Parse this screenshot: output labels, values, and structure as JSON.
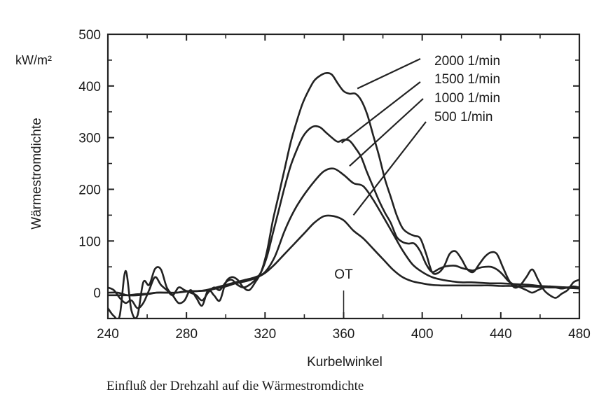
{
  "chart_data": {
    "type": "line",
    "title": "",
    "xlabel": "Kurbelwinkel",
    "ylabel": "Wärmestromdichte",
    "yunit": "kW/m²",
    "xlim": [
      240,
      480
    ],
    "ylim": [
      -50,
      500
    ],
    "xticks": [
      240,
      280,
      320,
      360,
      400,
      440,
      480
    ],
    "yticks": [
      0,
      100,
      200,
      300,
      400,
      500
    ],
    "annotation": "OT",
    "annotation_x": 360,
    "grid": false,
    "legend": "top-right (labels with leader lines)",
    "series": [
      {
        "name": "2000 1/min",
        "x": [
          240,
          243,
          246,
          249,
          252,
          255,
          258,
          261,
          264,
          267,
          270,
          273,
          276,
          279,
          282,
          285,
          288,
          291,
          294,
          297,
          300,
          303,
          306,
          309,
          312,
          315,
          318,
          321,
          324,
          327,
          330,
          333,
          336,
          339,
          342,
          345,
          348,
          351,
          354,
          357,
          360,
          363,
          366,
          369,
          372,
          375,
          378,
          381,
          384,
          387,
          390,
          393,
          396,
          399,
          402,
          405,
          408,
          411,
          414,
          417,
          420,
          423,
          426,
          429,
          432,
          435,
          438,
          441,
          444,
          447,
          450,
          453,
          456,
          459,
          462,
          465,
          468,
          471,
          474,
          477,
          480
        ],
        "y": [
          -30,
          -45,
          -45,
          42,
          -35,
          -45,
          20,
          15,
          46,
          45,
          10,
          -5,
          -20,
          -15,
          5,
          -10,
          -25,
          5,
          -5,
          -15,
          20,
          30,
          25,
          10,
          5,
          20,
          40,
          80,
          140,
          190,
          240,
          290,
          330,
          365,
          390,
          410,
          420,
          425,
          422,
          405,
          390,
          385,
          385,
          372,
          345,
          305,
          265,
          220,
          185,
          150,
          125,
          115,
          110,
          105,
          75,
          40,
          38,
          50,
          75,
          80,
          65,
          45,
          40,
          55,
          70,
          78,
          75,
          50,
          25,
          10,
          15,
          30,
          45,
          25,
          5,
          -5,
          -10,
          -2,
          5,
          20,
          25
        ]
      },
      {
        "name": "1500 1/min",
        "x": [
          240,
          243,
          246,
          249,
          252,
          255,
          258,
          261,
          264,
          267,
          270,
          273,
          276,
          279,
          282,
          285,
          288,
          291,
          294,
          297,
          300,
          303,
          306,
          309,
          312,
          315,
          318,
          321,
          324,
          327,
          330,
          333,
          336,
          339,
          342,
          345,
          348,
          351,
          354,
          357,
          360,
          363,
          366,
          369,
          372,
          375,
          378,
          381,
          384,
          387,
          390,
          393,
          396,
          399,
          402,
          405,
          408,
          411,
          414,
          417,
          420,
          423,
          426,
          429,
          432,
          435,
          438,
          441,
          444,
          447,
          450,
          453,
          456,
          459,
          462,
          465,
          468,
          471,
          474,
          477,
          480
        ],
        "y": [
          10,
          5,
          -10,
          -20,
          -15,
          -30,
          -20,
          5,
          30,
          15,
          5,
          -5,
          10,
          5,
          0,
          -5,
          -15,
          0,
          10,
          5,
          20,
          25,
          15,
          10,
          15,
          25,
          40,
          70,
          115,
          160,
          205,
          245,
          275,
          300,
          315,
          322,
          320,
          310,
          300,
          292,
          296,
          294,
          280,
          262,
          232,
          205,
          178,
          155,
          135,
          108,
          98,
          95,
          95,
          80,
          55,
          40,
          45,
          50,
          52,
          52,
          48,
          45,
          43,
          48,
          50,
          50,
          45,
          35,
          22,
          15,
          10,
          5,
          0,
          5,
          10,
          12,
          10,
          8,
          10,
          12,
          10
        ]
      },
      {
        "name": "1000 1/min",
        "x": [
          240,
          245,
          250,
          255,
          260,
          265,
          270,
          275,
          280,
          285,
          290,
          295,
          300,
          305,
          310,
          315,
          320,
          325,
          330,
          335,
          340,
          345,
          350,
          355,
          360,
          365,
          370,
          375,
          380,
          385,
          390,
          395,
          400,
          405,
          410,
          415,
          420,
          425,
          430,
          435,
          440,
          445,
          450,
          455,
          460,
          465,
          470,
          475,
          480
        ],
        "y": [
          0,
          0,
          -5,
          -5,
          -3,
          0,
          0,
          0,
          3,
          3,
          5,
          10,
          15,
          20,
          25,
          30,
          40,
          70,
          120,
          160,
          190,
          215,
          235,
          240,
          228,
          212,
          206,
          180,
          148,
          115,
          82,
          55,
          40,
          30,
          25,
          22,
          20,
          20,
          19,
          18,
          18,
          17,
          16,
          15,
          13,
          12,
          11,
          10,
          10
        ]
      },
      {
        "name": "500 1/min",
        "x": [
          240,
          245,
          250,
          255,
          260,
          265,
          270,
          275,
          280,
          285,
          290,
          295,
          300,
          305,
          310,
          315,
          320,
          325,
          330,
          335,
          340,
          345,
          350,
          355,
          360,
          365,
          370,
          375,
          380,
          385,
          390,
          395,
          400,
          405,
          410,
          415,
          420,
          425,
          430,
          435,
          440,
          445,
          450,
          455,
          460,
          465,
          470,
          475,
          480
        ],
        "y": [
          -5,
          -5,
          -5,
          -3,
          -2,
          0,
          0,
          0,
          2,
          3,
          4,
          8,
          12,
          18,
          22,
          28,
          38,
          55,
          75,
          95,
          115,
          135,
          148,
          148,
          140,
          120,
          105,
          85,
          65,
          45,
          30,
          22,
          18,
          15,
          14,
          14,
          14,
          14,
          14,
          14,
          13,
          13,
          12,
          12,
          11,
          10,
          10,
          9,
          8
        ]
      }
    ]
  },
  "caption": "Einfluß der Drehzahl auf die Wärmestromdichte"
}
